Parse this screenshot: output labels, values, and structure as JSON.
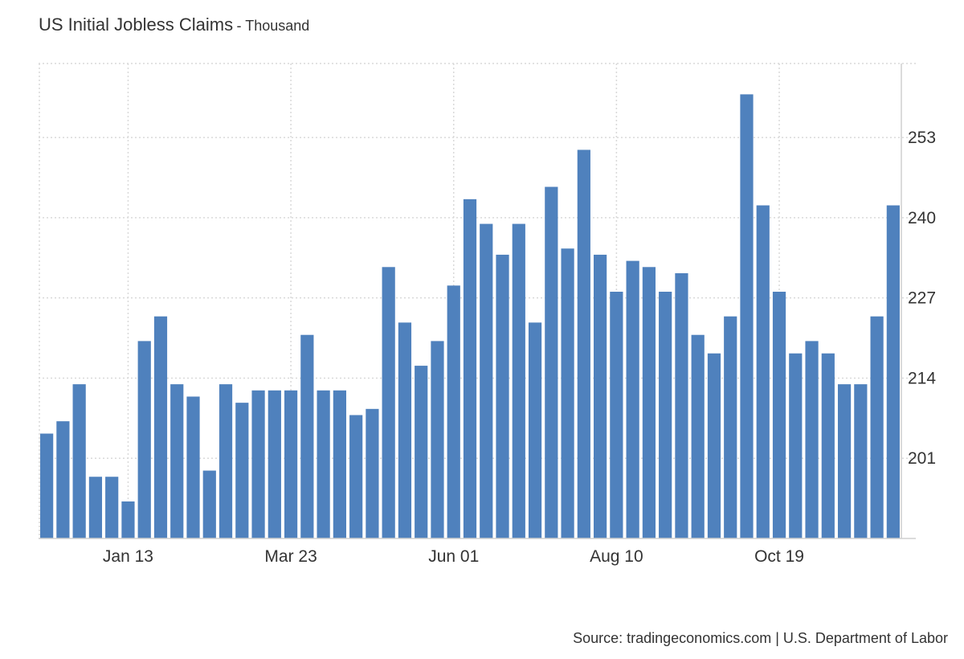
{
  "header": {
    "title": "US Initial Jobless Claims",
    "subtitle": "- Thousand"
  },
  "source": "Source: tradingeconomics.com | U.S. Department of Labor",
  "colors": {
    "bar": "#4f81bd",
    "grid": "#d9d9d9",
    "axis": "#cfcfcf",
    "text": "#333333"
  },
  "chart_data": {
    "type": "bar",
    "title": "US Initial Jobless Claims",
    "subtitle": "- Thousand",
    "xlabel": "",
    "ylabel": "",
    "x_tick_labels": [
      "Jan 13",
      "Mar 23",
      "Jun 01",
      "Aug 10",
      "Oct 19"
    ],
    "x_tick_bar_index": [
      5,
      15,
      25,
      35,
      45
    ],
    "y_ticks": [
      201,
      214,
      227,
      240,
      253
    ],
    "ylim": [
      188,
      265
    ],
    "grid": true,
    "legend": "none",
    "values": [
      205,
      207,
      213,
      198,
      198,
      194,
      220,
      224,
      213,
      211,
      199,
      213,
      210,
      212,
      212,
      212,
      221,
      212,
      212,
      208,
      209,
      232,
      223,
      216,
      220,
      229,
      243,
      239,
      234,
      239,
      223,
      245,
      235,
      251,
      234,
      228,
      233,
      232,
      228,
      231,
      221,
      218,
      224,
      260,
      242,
      228,
      218,
      220,
      218,
      213,
      213,
      224,
      242
    ]
  }
}
